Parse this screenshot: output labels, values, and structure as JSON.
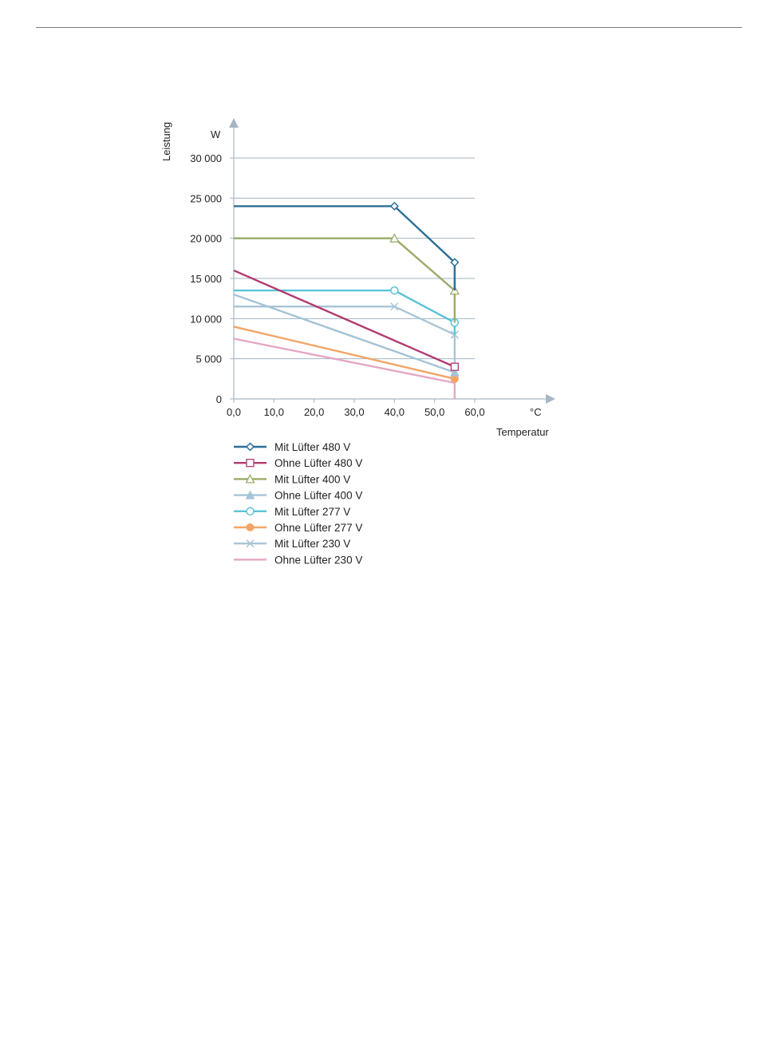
{
  "chart_data": {
    "type": "line",
    "title": "",
    "xlabel": "Temperatur",
    "xunit": "°C",
    "ylabel": "Leistung",
    "yunit": "W",
    "xlim": [
      0,
      60
    ],
    "ylim": [
      0,
      30000
    ],
    "xticks": [
      0,
      10,
      20,
      30,
      40,
      50,
      60
    ],
    "xtick_labels": [
      "0,0",
      "10,0",
      "20,0",
      "30,0",
      "40,0",
      "50,0",
      "60,0"
    ],
    "yticks": [
      0,
      5000,
      10000,
      15000,
      20000,
      25000,
      30000
    ],
    "ytick_labels": [
      "0",
      "5 000",
      "10 000",
      "15 000",
      "20 000",
      "25 000",
      "30 000"
    ],
    "grid": "horizontal",
    "legend_position": "bottom",
    "series": [
      {
        "name": "Mit Lüfter 480 V",
        "color": "#2b6e96",
        "marker": "diamond",
        "x": [
          0,
          40,
          55,
          55
        ],
        "y": [
          24000,
          24000,
          17000,
          13500
        ],
        "markers_at": [
          1,
          2
        ]
      },
      {
        "name": "Ohne Lüfter 480 V",
        "color": "#b23a6f",
        "marker": "square",
        "x": [
          0,
          55
        ],
        "y": [
          16000,
          4000
        ],
        "markers_at": [
          1
        ]
      },
      {
        "name": "Mit Lüfter 400 V",
        "color": "#9aab6a",
        "marker": "triangle",
        "x": [
          0,
          40,
          55,
          55
        ],
        "y": [
          20000,
          20000,
          13500,
          9500
        ],
        "markers_at": [
          1,
          2
        ]
      },
      {
        "name": "Ohne Lüfter 400 V",
        "color": "#a5c3d6",
        "marker": "triangle-filled",
        "x": [
          0,
          55
        ],
        "y": [
          13000,
          3300
        ],
        "markers_at": [
          1
        ]
      },
      {
        "name": "Mit Lüfter 277 V",
        "color": "#5ac3d6",
        "marker": "circle",
        "x": [
          0,
          40,
          55,
          55
        ],
        "y": [
          13500,
          13500,
          9500,
          8000
        ],
        "markers_at": [
          1,
          2
        ]
      },
      {
        "name": "Ohne Lüfter 277 V",
        "color": "#f2a566",
        "marker": "circle-filled",
        "x": [
          0,
          55
        ],
        "y": [
          9000,
          2500
        ],
        "markers_at": [
          1
        ]
      },
      {
        "name": "Mit Lüfter 230 V",
        "color": "#a9c5d6",
        "marker": "x",
        "x": [
          0,
          40,
          55,
          55
        ],
        "y": [
          11500,
          11500,
          8000,
          2500
        ],
        "markers_at": [
          1,
          2
        ]
      },
      {
        "name": "Ohne Lüfter 230 V",
        "color": "#e4a7c3",
        "marker": "none",
        "x": [
          0,
          55,
          55
        ],
        "y": [
          7500,
          2000,
          0
        ],
        "markers_at": []
      }
    ]
  }
}
